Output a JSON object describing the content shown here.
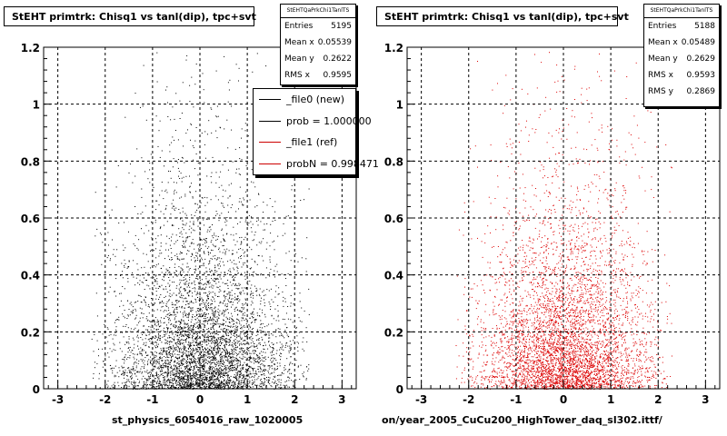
{
  "panels": [
    {
      "title": "StEHT primtrk: Chisq1 vs tanl(dip), tpc+svt",
      "stats": {
        "name": "StEHTQaPrkChi1TanlTS",
        "rows": [
          {
            "label": "Entries",
            "value": "5195"
          },
          {
            "label": "Mean x",
            "value": "0.05539"
          },
          {
            "label": "Mean y",
            "value": "0.2622"
          },
          {
            "label": "RMS x",
            "value": "0.9595"
          }
        ]
      },
      "legend": [
        {
          "label": "_file0 (new)",
          "color": "#000000"
        },
        {
          "label": "prob = 1.000000",
          "color": "#000000"
        },
        {
          "label": "_file1 (ref)",
          "color": "#cc0000"
        },
        {
          "label": "probN = 0.998471",
          "color": "#cc0000"
        }
      ],
      "xlabel": "st_physics_6054016_raw_1020005",
      "point_color": "#000000"
    },
    {
      "title": "StEHT primtrk: Chisq1 vs tanl(dip), tpc+svt",
      "stats": {
        "name": "StEHTQaPrkChi1TanlTS",
        "rows": [
          {
            "label": "Entries",
            "value": "5188"
          },
          {
            "label": "Mean x",
            "value": "0.05489"
          },
          {
            "label": "Mean y",
            "value": "0.2629"
          },
          {
            "label": "RMS x",
            "value": "0.9593"
          },
          {
            "label": "RMS y",
            "value": "0.2869"
          }
        ]
      },
      "xlabel": "on/year_2005_CuCu200_HighTower_daq_sl302.ittf/",
      "point_color": "#dd0000"
    }
  ],
  "chart_data": [
    {
      "type": "scatter",
      "title": "StEHT primtrk: Chisq1 vs tanl(dip), tpc+svt",
      "xlabel": "st_physics_6054016_raw_1020005",
      "ylabel": "",
      "xlim": [
        -3.3,
        3.3
      ],
      "ylim": [
        0,
        1.2
      ],
      "xticks": [
        "-3",
        "-2",
        "-1",
        "0",
        "1",
        "2",
        "3"
      ],
      "yticks": [
        "0",
        "0.2",
        "0.4",
        "0.6",
        "0.8",
        "1",
        "1.2"
      ],
      "grid": true,
      "entries": 5195,
      "mean_x": 0.05539,
      "mean_y": 0.2622,
      "rms_x": 0.9595
    },
    {
      "type": "scatter",
      "title": "StEHT primtrk: Chisq1 vs tanl(dip), tpc+svt",
      "xlabel": "on/year_2005_CuCu200_HighTower_daq_sl302.ittf/",
      "ylabel": "",
      "xlim": [
        -3.3,
        3.3
      ],
      "ylim": [
        0,
        1.2
      ],
      "xticks": [
        "-3",
        "-2",
        "-1",
        "0",
        "1",
        "2",
        "3"
      ],
      "yticks": [
        "0",
        "0.2",
        "0.4",
        "0.6",
        "0.8",
        "1",
        "1.2"
      ],
      "grid": true,
      "entries": 5188,
      "mean_x": 0.05489,
      "mean_y": 0.2629,
      "rms_x": 0.9593,
      "rms_y": 0.2869
    }
  ]
}
